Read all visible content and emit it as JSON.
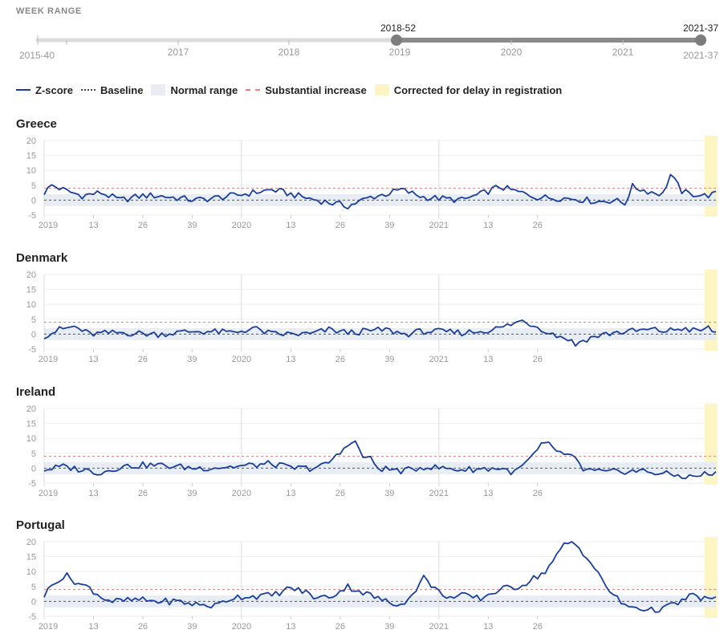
{
  "week_range": {
    "label": "WEEK RANGE",
    "start_label": "2015-40",
    "end_label": "2021-37",
    "selected_start": "2018-52",
    "selected_end": "2021-37",
    "year_labels": [
      "2017",
      "2018",
      "2019",
      "2020",
      "2021"
    ]
  },
  "legend": {
    "zscore": "Z-score",
    "baseline": "Baseline",
    "normal": "Normal range",
    "substantial": "Substantial increase",
    "corrected": "Corrected for delay in registration"
  },
  "colors": {
    "zscore": "#1a3e9c",
    "baseline": "#444444",
    "normal_range": "#e8edf3",
    "substantial": "#f08080",
    "corrected": "#fdf5c4"
  },
  "chart_data": [
    {
      "type": "line",
      "title": "Greece",
      "ylim": [
        -5,
        20
      ],
      "yticks": [
        -5,
        0,
        5,
        10,
        15,
        20
      ],
      "xtick_labels": [
        "2019",
        "13",
        "26",
        "39",
        "2020",
        "13",
        "26",
        "39",
        "2021",
        "13",
        "26"
      ],
      "baseline": 0,
      "normal_range": [
        -2,
        2
      ],
      "substantial_increase": 4,
      "corrected_weeks": 3,
      "keypoints": [
        [
          0,
          2.5
        ],
        [
          2,
          5
        ],
        [
          6,
          3
        ],
        [
          10,
          1.5
        ],
        [
          15,
          2.5
        ],
        [
          20,
          0
        ],
        [
          26,
          1.5
        ],
        [
          30,
          1.5
        ],
        [
          40,
          0
        ],
        [
          50,
          1.5
        ],
        [
          55,
          2.5
        ],
        [
          60,
          3.5
        ],
        [
          65,
          2
        ],
        [
          70,
          0.5
        ],
        [
          76,
          -1
        ],
        [
          80,
          -2
        ],
        [
          86,
          1
        ],
        [
          90,
          2
        ],
        [
          94,
          3.5
        ],
        [
          100,
          1
        ],
        [
          110,
          0
        ],
        [
          115,
          2
        ],
        [
          120,
          4.5
        ],
        [
          124,
          3
        ],
        [
          130,
          1
        ],
        [
          140,
          0.5
        ],
        [
          146,
          -0.5
        ],
        [
          150,
          0
        ],
        [
          153,
          -1
        ],
        [
          155,
          4.5
        ],
        [
          159,
          3
        ],
        [
          163,
          2
        ],
        [
          165,
          8.5
        ],
        [
          168,
          3
        ],
        [
          170,
          2
        ],
        [
          172,
          2
        ],
        [
          174,
          1.5
        ],
        [
          177,
          2
        ]
      ]
    },
    {
      "type": "line",
      "title": "Denmark",
      "ylim": [
        -5,
        20
      ],
      "yticks": [
        -5,
        0,
        5,
        10,
        15,
        20
      ],
      "xtick_labels": [
        "2019",
        "13",
        "26",
        "39",
        "2020",
        "13",
        "26",
        "39",
        "2021",
        "13",
        "26"
      ],
      "baseline": 0,
      "normal_range": [
        -2,
        2
      ],
      "substantial_increase": 4,
      "corrected_weeks": 3,
      "keypoints": [
        [
          0,
          -0.5
        ],
        [
          4,
          1.5
        ],
        [
          8,
          2.5
        ],
        [
          12,
          0
        ],
        [
          20,
          0.5
        ],
        [
          30,
          0
        ],
        [
          40,
          1
        ],
        [
          50,
          0.5
        ],
        [
          55,
          2
        ],
        [
          60,
          0
        ],
        [
          70,
          0
        ],
        [
          75,
          1.5
        ],
        [
          80,
          0.5
        ],
        [
          85,
          1
        ],
        [
          90,
          1.5
        ],
        [
          95,
          0
        ],
        [
          100,
          1
        ],
        [
          110,
          0.5
        ],
        [
          115,
          1
        ],
        [
          120,
          2
        ],
        [
          126,
          4.5
        ],
        [
          130,
          2.5
        ],
        [
          134,
          0
        ],
        [
          138,
          -1.5
        ],
        [
          140,
          -3.5
        ],
        [
          142,
          -2
        ],
        [
          146,
          -0.5
        ],
        [
          150,
          0.5
        ],
        [
          155,
          1
        ],
        [
          160,
          1.5
        ],
        [
          164,
          1
        ],
        [
          168,
          2
        ],
        [
          172,
          1
        ],
        [
          175,
          2
        ],
        [
          177,
          0.5
        ]
      ]
    },
    {
      "type": "line",
      "title": "Ireland",
      "ylim": [
        -5,
        20
      ],
      "yticks": [
        -5,
        0,
        5,
        10,
        15,
        20
      ],
      "xtick_labels": [
        "2019",
        "13",
        "26",
        "39",
        "2020",
        "13",
        "26",
        "39",
        "2021",
        "13",
        "26"
      ],
      "baseline": 0,
      "normal_range": [
        -2,
        2
      ],
      "substantial_increase": 4,
      "corrected_weeks": 3,
      "keypoints": [
        [
          0,
          -0.5
        ],
        [
          5,
          0.5
        ],
        [
          10,
          -0.5
        ],
        [
          15,
          -1.5
        ],
        [
          20,
          0.5
        ],
        [
          26,
          1
        ],
        [
          30,
          1
        ],
        [
          40,
          0
        ],
        [
          50,
          0.5
        ],
        [
          60,
          1.5
        ],
        [
          65,
          0
        ],
        [
          70,
          0
        ],
        [
          74,
          1
        ],
        [
          78,
          5
        ],
        [
          80,
          8.5
        ],
        [
          82,
          8.5
        ],
        [
          84,
          4
        ],
        [
          86,
          3
        ],
        [
          88,
          0
        ],
        [
          95,
          -1
        ],
        [
          100,
          0.5
        ],
        [
          110,
          -0.5
        ],
        [
          120,
          0
        ],
        [
          124,
          -1.5
        ],
        [
          128,
          3
        ],
        [
          131,
          7.5
        ],
        [
          133,
          8
        ],
        [
          136,
          5
        ],
        [
          140,
          3
        ],
        [
          142,
          -0.5
        ],
        [
          148,
          -1.5
        ],
        [
          152,
          -1
        ],
        [
          158,
          -1
        ],
        [
          164,
          -2
        ],
        [
          170,
          -3
        ],
        [
          174,
          -2
        ],
        [
          177,
          -2
        ]
      ]
    },
    {
      "type": "line",
      "title": "Portugal",
      "ylim": [
        -5,
        20
      ],
      "yticks": [
        -5,
        0,
        5,
        10,
        15,
        20
      ],
      "xtick_labels": [
        "2019",
        "13",
        "26",
        "39",
        "2020",
        "13",
        "26",
        "39",
        "2021",
        "13",
        "26"
      ],
      "baseline": 0,
      "normal_range": [
        -2,
        2
      ],
      "substantial_increase": 4,
      "corrected_weeks": 3,
      "keypoints": [
        [
          0,
          2
        ],
        [
          3,
          7
        ],
        [
          6,
          8.5
        ],
        [
          9,
          6
        ],
        [
          12,
          4.5
        ],
        [
          15,
          1.5
        ],
        [
          18,
          0
        ],
        [
          25,
          0.5
        ],
        [
          30,
          0
        ],
        [
          35,
          0
        ],
        [
          40,
          -1
        ],
        [
          45,
          -1.5
        ],
        [
          50,
          1.5
        ],
        [
          60,
          2
        ],
        [
          65,
          4.5
        ],
        [
          69,
          3
        ],
        [
          72,
          1
        ],
        [
          76,
          2
        ],
        [
          80,
          5
        ],
        [
          84,
          3
        ],
        [
          88,
          1
        ],
        [
          92,
          -1
        ],
        [
          96,
          0.5
        ],
        [
          100,
          8
        ],
        [
          104,
          3
        ],
        [
          108,
          1
        ],
        [
          110,
          2
        ],
        [
          115,
          1
        ],
        [
          120,
          4
        ],
        [
          125,
          5
        ],
        [
          128,
          7
        ],
        [
          132,
          10
        ],
        [
          135,
          15
        ],
        [
          137,
          19
        ],
        [
          139,
          20
        ],
        [
          141,
          18
        ],
        [
          144,
          13
        ],
        [
          147,
          7
        ],
        [
          150,
          2
        ],
        [
          153,
          -1.5
        ],
        [
          156,
          -2
        ],
        [
          160,
          -3
        ],
        [
          164,
          -2
        ],
        [
          168,
          0
        ],
        [
          170,
          2
        ],
        [
          174,
          1
        ],
        [
          177,
          0.5
        ]
      ]
    }
  ]
}
